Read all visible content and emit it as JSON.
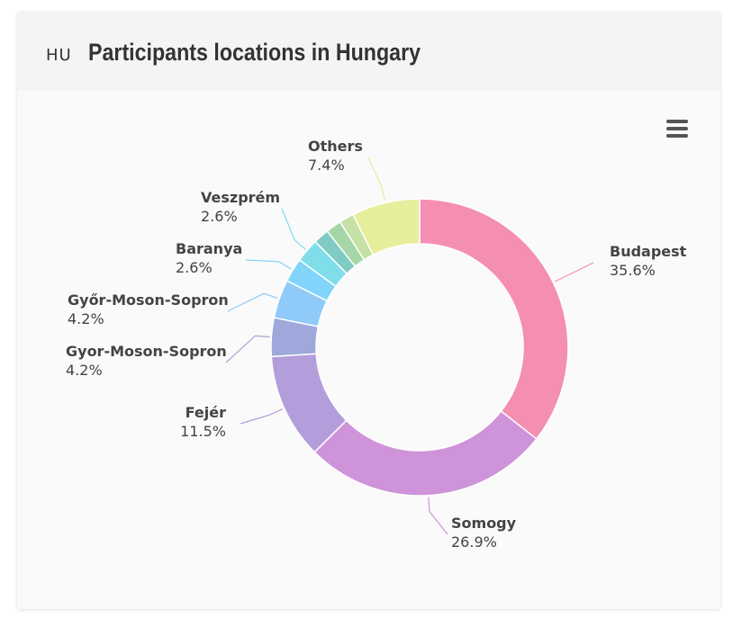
{
  "header": {
    "country_code": "HU",
    "title": "Participants locations in Hungary"
  },
  "menu": {
    "icon": "hamburger-menu-icon"
  },
  "chart_data": {
    "type": "pie",
    "variant": "donut",
    "title": "Participants locations in Hungary",
    "unit": "%",
    "slices": [
      {
        "name": "Budapest",
        "value": 35.6,
        "color": "#f48fb1",
        "label": "35.6%"
      },
      {
        "name": "Somogy",
        "value": 26.9,
        "color": "#ce93d8",
        "label": "26.9%"
      },
      {
        "name": "Fejér",
        "value": 11.5,
        "color": "#b39ddb",
        "label": "11.5%"
      },
      {
        "name": "Gyor-Moson-Sopron",
        "value": 4.2,
        "color": "#9fa8da",
        "label": "4.2%"
      },
      {
        "name": "Győr-Moson-Sopron",
        "value": 4.2,
        "color": "#90caf9",
        "label": "4.2%"
      },
      {
        "name": "Baranya",
        "value": 2.6,
        "color": "#81d4fa",
        "label": "2.6%"
      },
      {
        "name": "Veszprém",
        "value": 2.6,
        "color": "#80deea",
        "label": "2.6%"
      },
      {
        "name": "",
        "value": 1.7,
        "color": "#80cbc4",
        "label": ""
      },
      {
        "name": "",
        "value": 1.7,
        "color": "#a5d6a7",
        "label": ""
      },
      {
        "name": "",
        "value": 1.6,
        "color": "#c5e1a5",
        "label": ""
      },
      {
        "name": "Others",
        "value": 7.4,
        "color": "#e6ee9c",
        "label": "7.4%"
      }
    ]
  }
}
